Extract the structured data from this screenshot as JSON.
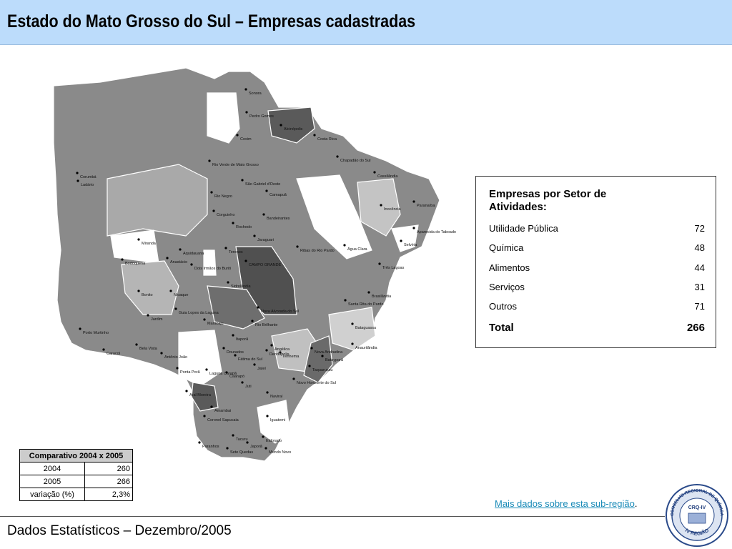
{
  "header": {
    "title": "Estado do Mato Grosso do Sul – Empresas cadastradas"
  },
  "map": {
    "towns": [
      "Sonora",
      "Pedro Gomes",
      "Alcinópolis",
      "Costa Rica",
      "Coxim",
      "Chapadão do Sul",
      "Cassilândia",
      "Rio Verde de Mato Grosso",
      "São Gabriel d'Oeste",
      "Corumbá",
      "Ladário",
      "Rio Negro",
      "Camapuã",
      "Inocência",
      "Paranaíba",
      "Corguinho",
      "Bandeirantes",
      "Rochedo",
      "Jaraguari",
      "Ribas do Rio Pardo",
      "Água Clara",
      "Aparecida do Taboado",
      "Selvíria",
      "Miranda",
      "Aquidauana",
      "Anastácio",
      "Terenos",
      "CAMPO GRANDE",
      "Dois Irmãos do Buriti",
      "Bodoquena",
      "Três Lagoas",
      "Sidrolândia",
      "Brasilândia",
      "Bonito",
      "Nioaque",
      "Nova Alvorada do Sul",
      "Santa Rita do Pardo",
      "Guia Lopes da Laguna",
      "Jardim",
      "Maracaju",
      "Rio Brilhante",
      "Bataguassu",
      "Porto Murtinho",
      "Itaporã",
      "Caracol",
      "Bela Vista",
      "Dourados",
      "Anaurilândia",
      "Angélica",
      "Nova Andradina",
      "Deodápolis",
      "Ivinhema",
      "Batayporã",
      "Fátima do Sul",
      "Antônio João",
      "Ponta Porã",
      "Laguna Carapã",
      "Caarapó",
      "Jateí",
      "Taquarussu",
      "Novo Horizonte do Sul",
      "Juti",
      "Aral Moreira",
      "Naviraí",
      "Amambai",
      "Coronel Sapucaia",
      "Iguatemi",
      "Tacuru",
      "Eldorado",
      "Paranhos",
      "Sete Quedas",
      "Japorã",
      "Mundo Novo"
    ]
  },
  "sector_table": {
    "title": "Empresas por Setor de Atividades:",
    "rows": [
      [
        "Utilidade Pública",
        72
      ],
      [
        "Química",
        48
      ],
      [
        "Alimentos",
        44
      ],
      [
        "Serviços",
        31
      ],
      [
        "Outros",
        71
      ]
    ],
    "total": [
      "Total",
      266
    ]
  },
  "comparison_table": {
    "header": "Comparativo 2004 x 2005",
    "rows": [
      [
        "2004",
        260
      ],
      [
        "2005",
        266
      ],
      [
        "variação (%)",
        "2,3%"
      ]
    ]
  },
  "link": {
    "text": "Mais dados sobre esta sub-região",
    "suffix": "."
  },
  "footer": {
    "text": "Dados Estatísticos – Dezembro/2005"
  },
  "logo": {
    "name": "CRQ-IV",
    "ring_top": "CONSELHO REGIONAL DE QUÍMICA",
    "ring_bottom": "IV REGIÃO"
  }
}
